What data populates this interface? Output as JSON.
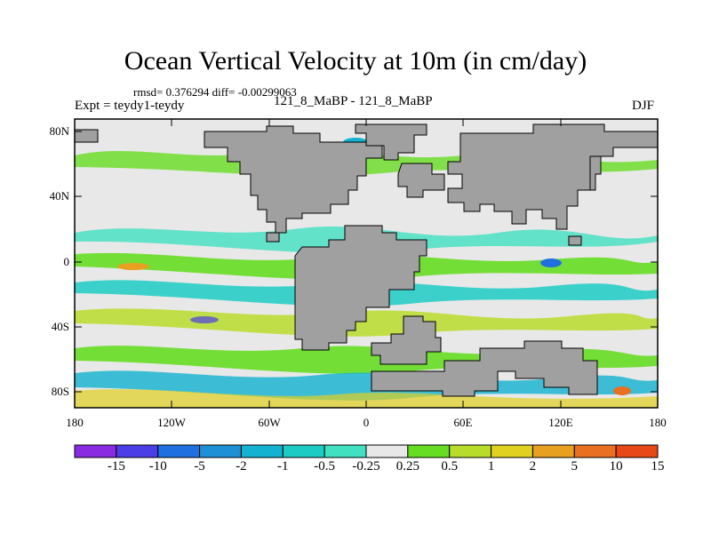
{
  "title": "Ocean Vertical Velocity at 10m (in cm/day)",
  "stats": "rmsd= 0.376294 diff= -0.00299063",
  "expt": "Expt = teydy1-teydy",
  "case": "121_8_MaBP - 121_8_MaBP",
  "season": "DJF",
  "axes": {
    "y_labels": [
      "80N",
      "40N",
      "0",
      "40S",
      "80S"
    ],
    "x_labels": [
      "180",
      "120W",
      "60W",
      "0",
      "60E",
      "120E",
      "180"
    ]
  },
  "colorbar": {
    "labels": [
      "-15",
      "-10",
      "-5",
      "-2",
      "-1",
      "-0.5",
      "-0.25",
      "0.25",
      "0.5",
      "1",
      "2",
      "5",
      "10",
      "15"
    ],
    "colors": [
      "#8a2be2",
      "#4b3ee6",
      "#1f6fe0",
      "#1e90d6",
      "#12b2d0",
      "#1cccc4",
      "#40e0c0",
      "#e8e8e8",
      "#66dd22",
      "#b8dc2a",
      "#e0d020",
      "#e8a020",
      "#e87020",
      "#e84818"
    ]
  },
  "colors": {
    "land": "#a0a0a0",
    "ocean_neutral": "#e8e8e8"
  }
}
